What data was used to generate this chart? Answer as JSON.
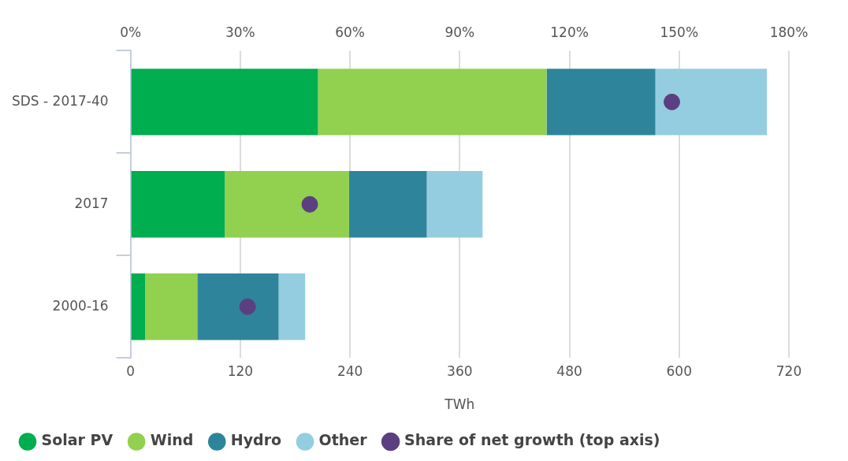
{
  "chart_data": {
    "type": "bar",
    "orientation": "horizontal",
    "stacked": true,
    "xlabel": "TWh",
    "categories": [
      "SDS - 2017-40",
      "2017",
      "2000-16"
    ],
    "series": [
      {
        "name": "Solar PV",
        "color": "#00ad4f",
        "values": [
          205,
          103,
          16
        ]
      },
      {
        "name": "Wind",
        "color": "#92d050",
        "values": [
          250,
          136,
          57
        ]
      },
      {
        "name": "Hydro",
        "color": "#2e859b",
        "values": [
          119,
          85,
          89
        ]
      },
      {
        "name": "Other",
        "color": "#94cddf",
        "values": [
          122,
          61,
          29
        ]
      },
      {
        "name": "Share of net growth (top axis)",
        "type": "scatter",
        "axis": "x2",
        "color": "#5b3f80",
        "marker": "circle",
        "values": [
          148,
          49,
          32
        ]
      }
    ],
    "xlim": [
      0,
      720
    ],
    "xticks": [
      0,
      120,
      240,
      360,
      480,
      600,
      720
    ],
    "x2lim": [
      0,
      180
    ],
    "x2ticks": [
      {
        "value": 0,
        "label": "0%"
      },
      {
        "value": 30,
        "label": "30%"
      },
      {
        "value": 60,
        "label": "60%"
      },
      {
        "value": 90,
        "label": "90%"
      },
      {
        "value": 120,
        "label": "120%"
      },
      {
        "value": 150,
        "label": "150%"
      },
      {
        "value": 180,
        "label": "180%"
      }
    ],
    "grid": "x",
    "legend": "bottom"
  }
}
